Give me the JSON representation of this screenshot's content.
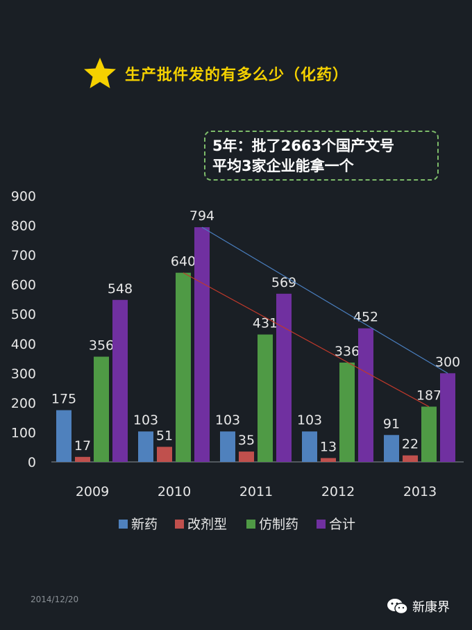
{
  "header": {
    "title": "生产批件发的有多么少（化药）",
    "star_icon": "star-icon"
  },
  "callout": {
    "line1": "5年：批了2663个国产文号",
    "line2": "平均3家企业能拿一个"
  },
  "footer": {
    "date": "2014/12/20",
    "brand": "新康界",
    "brand_icon": "wechat-icon"
  },
  "colors": {
    "background": "#1a1f25",
    "title": "#f5d100",
    "text": "#e8e8e8"
  },
  "chart_data": {
    "type": "bar",
    "categories": [
      "2009",
      "2010",
      "2011",
      "2012",
      "2013"
    ],
    "series": [
      {
        "name": "新药",
        "values": [
          175,
          103,
          103,
          103,
          91
        ],
        "color": "#4f81bd"
      },
      {
        "name": "改剂型",
        "values": [
          17,
          51,
          35,
          13,
          22
        ],
        "color": "#c0504d"
      },
      {
        "name": "仿制药",
        "values": [
          356,
          640,
          431,
          336,
          187
        ],
        "color": "#4f9a45"
      },
      {
        "name": "合计",
        "values": [
          548,
          794,
          569,
          452,
          300
        ],
        "color": "#7030a0"
      }
    ],
    "ylim": [
      0,
      900
    ],
    "yticks": [
      0,
      100,
      200,
      300,
      400,
      500,
      600,
      700,
      800,
      900
    ],
    "legend": "bottom",
    "trendlines": [
      {
        "series": "合计",
        "from": "2010",
        "to": "2013",
        "color": "#4a7fc0"
      },
      {
        "series": "仿制药",
        "from": "2010",
        "to": "2013",
        "color": "#c0392b"
      }
    ]
  }
}
